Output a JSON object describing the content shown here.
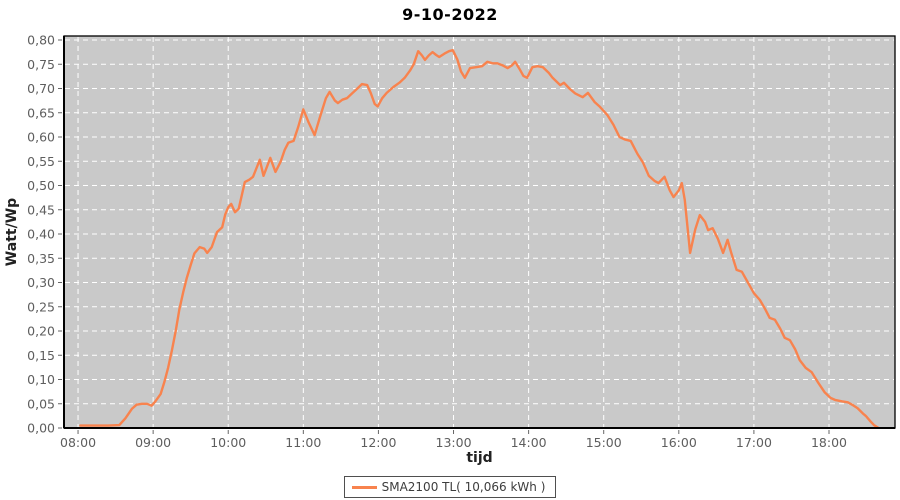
{
  "chart_data": {
    "type": "line",
    "title": "9-10-2022",
    "xlabel": "tijd",
    "ylabel": "Watt/Wp",
    "ylim": [
      0,
      0.8
    ],
    "xlim_hours": [
      7.813,
      18.879
    ],
    "grid": true,
    "grid_style": "white dashed on gray plot background",
    "legend_position": "bottom-center",
    "x_ticks": {
      "hours": [
        8,
        9,
        10,
        11,
        12,
        13,
        14,
        15,
        16,
        17,
        18
      ],
      "labels": [
        "08:00",
        "09:00",
        "10:00",
        "11:00",
        "12:00",
        "13:00",
        "14:00",
        "15:00",
        "16:00",
        "17:00",
        "18:00"
      ]
    },
    "y_ticks": {
      "values": [
        0,
        0.05,
        0.1,
        0.15,
        0.2,
        0.25,
        0.3,
        0.35,
        0.4,
        0.45,
        0.5,
        0.55,
        0.6,
        0.65,
        0.7,
        0.75,
        0.8
      ],
      "labels": [
        "0,00",
        "0,05",
        "0,10",
        "0,15",
        "0,20",
        "0,25",
        "0,30",
        "0,35",
        "0,40",
        "0,45",
        "0,50",
        "0,55",
        "0,60",
        "0,65",
        "0,70",
        "0,75",
        "0,80"
      ]
    },
    "colors": {
      "plot_background": "#c9c9c9",
      "gridline": "#ffffff",
      "axis": "#000000",
      "tick_label": "#5e5e5e",
      "series_line": "#f8834e"
    },
    "series": [
      {
        "name": "SMA2100 TL( 10,066 kWh )",
        "color": "#f8834e",
        "x_unit": "decimal_hours",
        "points": [
          [
            8.03,
            0.005
          ],
          [
            8.2,
            0.005
          ],
          [
            8.4,
            0.005
          ],
          [
            8.55,
            0.006
          ],
          [
            8.63,
            0.02
          ],
          [
            8.72,
            0.04
          ],
          [
            8.78,
            0.048
          ],
          [
            8.85,
            0.05
          ],
          [
            8.92,
            0.05
          ],
          [
            8.98,
            0.046
          ],
          [
            9.03,
            0.055
          ],
          [
            9.1,
            0.07
          ],
          [
            9.15,
            0.095
          ],
          [
            9.2,
            0.125
          ],
          [
            9.25,
            0.16
          ],
          [
            9.3,
            0.2
          ],
          [
            9.35,
            0.245
          ],
          [
            9.4,
            0.28
          ],
          [
            9.45,
            0.31
          ],
          [
            9.5,
            0.336
          ],
          [
            9.55,
            0.36
          ],
          [
            9.62,
            0.373
          ],
          [
            9.68,
            0.37
          ],
          [
            9.72,
            0.361
          ],
          [
            9.78,
            0.373
          ],
          [
            9.85,
            0.404
          ],
          [
            9.92,
            0.414
          ],
          [
            9.96,
            0.44
          ],
          [
            10.0,
            0.455
          ],
          [
            10.04,
            0.462
          ],
          [
            10.09,
            0.445
          ],
          [
            10.14,
            0.452
          ],
          [
            10.22,
            0.507
          ],
          [
            10.28,
            0.512
          ],
          [
            10.33,
            0.518
          ],
          [
            10.42,
            0.553
          ],
          [
            10.47,
            0.52
          ],
          [
            10.56,
            0.557
          ],
          [
            10.63,
            0.528
          ],
          [
            10.7,
            0.55
          ],
          [
            10.75,
            0.573
          ],
          [
            10.8,
            0.588
          ],
          [
            10.87,
            0.592
          ],
          [
            10.93,
            0.62
          ],
          [
            11.0,
            0.657
          ],
          [
            11.07,
            0.63
          ],
          [
            11.15,
            0.604
          ],
          [
            11.22,
            0.64
          ],
          [
            11.3,
            0.68
          ],
          [
            11.35,
            0.693
          ],
          [
            11.42,
            0.675
          ],
          [
            11.46,
            0.67
          ],
          [
            11.52,
            0.677
          ],
          [
            11.58,
            0.68
          ],
          [
            11.65,
            0.69
          ],
          [
            11.72,
            0.7
          ],
          [
            11.78,
            0.709
          ],
          [
            11.85,
            0.707
          ],
          [
            11.9,
            0.69
          ],
          [
            11.95,
            0.668
          ],
          [
            11.99,
            0.663
          ],
          [
            12.05,
            0.68
          ],
          [
            12.11,
            0.691
          ],
          [
            12.2,
            0.703
          ],
          [
            12.28,
            0.712
          ],
          [
            12.35,
            0.722
          ],
          [
            12.42,
            0.737
          ],
          [
            12.47,
            0.75
          ],
          [
            12.53,
            0.777
          ],
          [
            12.58,
            0.768
          ],
          [
            12.62,
            0.759
          ],
          [
            12.67,
            0.768
          ],
          [
            12.72,
            0.775
          ],
          [
            12.77,
            0.769
          ],
          [
            12.81,
            0.765
          ],
          [
            12.88,
            0.772
          ],
          [
            12.94,
            0.777
          ],
          [
            12.99,
            0.779
          ],
          [
            13.05,
            0.76
          ],
          [
            13.1,
            0.735
          ],
          [
            13.15,
            0.722
          ],
          [
            13.22,
            0.742
          ],
          [
            13.3,
            0.744
          ],
          [
            13.38,
            0.746
          ],
          [
            13.45,
            0.755
          ],
          [
            13.52,
            0.752
          ],
          [
            13.58,
            0.752
          ],
          [
            13.65,
            0.748
          ],
          [
            13.72,
            0.742
          ],
          [
            13.78,
            0.748
          ],
          [
            13.82,
            0.755
          ],
          [
            13.88,
            0.74
          ],
          [
            13.93,
            0.726
          ],
          [
            13.98,
            0.722
          ],
          [
            14.05,
            0.744
          ],
          [
            14.12,
            0.746
          ],
          [
            14.19,
            0.744
          ],
          [
            14.27,
            0.732
          ],
          [
            14.32,
            0.722
          ],
          [
            14.42,
            0.707
          ],
          [
            14.47,
            0.712
          ],
          [
            14.55,
            0.699
          ],
          [
            14.62,
            0.69
          ],
          [
            14.72,
            0.682
          ],
          [
            14.79,
            0.691
          ],
          [
            14.88,
            0.672
          ],
          [
            14.95,
            0.662
          ],
          [
            15.05,
            0.645
          ],
          [
            15.13,
            0.625
          ],
          [
            15.21,
            0.6
          ],
          [
            15.28,
            0.595
          ],
          [
            15.36,
            0.592
          ],
          [
            15.45,
            0.565
          ],
          [
            15.52,
            0.548
          ],
          [
            15.6,
            0.52
          ],
          [
            15.68,
            0.509
          ],
          [
            15.73,
            0.505
          ],
          [
            15.81,
            0.518
          ],
          [
            15.88,
            0.49
          ],
          [
            15.93,
            0.476
          ],
          [
            16.0,
            0.49
          ],
          [
            16.04,
            0.505
          ],
          [
            16.08,
            0.47
          ],
          [
            16.15,
            0.361
          ],
          [
            16.22,
            0.41
          ],
          [
            16.28,
            0.439
          ],
          [
            16.35,
            0.425
          ],
          [
            16.39,
            0.408
          ],
          [
            16.45,
            0.412
          ],
          [
            16.52,
            0.39
          ],
          [
            16.59,
            0.361
          ],
          [
            16.65,
            0.388
          ],
          [
            16.7,
            0.36
          ],
          [
            16.77,
            0.326
          ],
          [
            16.84,
            0.322
          ],
          [
            16.92,
            0.3
          ],
          [
            17.0,
            0.278
          ],
          [
            17.08,
            0.264
          ],
          [
            17.15,
            0.245
          ],
          [
            17.21,
            0.227
          ],
          [
            17.28,
            0.223
          ],
          [
            17.35,
            0.205
          ],
          [
            17.41,
            0.186
          ],
          [
            17.48,
            0.181
          ],
          [
            17.55,
            0.162
          ],
          [
            17.61,
            0.14
          ],
          [
            17.69,
            0.124
          ],
          [
            17.77,
            0.115
          ],
          [
            17.85,
            0.095
          ],
          [
            17.94,
            0.074
          ],
          [
            18.02,
            0.062
          ],
          [
            18.08,
            0.058
          ],
          [
            18.17,
            0.055
          ],
          [
            18.25,
            0.053
          ],
          [
            18.32,
            0.047
          ],
          [
            18.38,
            0.041
          ],
          [
            18.45,
            0.03
          ],
          [
            18.49,
            0.025
          ],
          [
            18.55,
            0.014
          ],
          [
            18.6,
            0.006
          ],
          [
            18.65,
            0.001
          ]
        ]
      }
    ]
  }
}
